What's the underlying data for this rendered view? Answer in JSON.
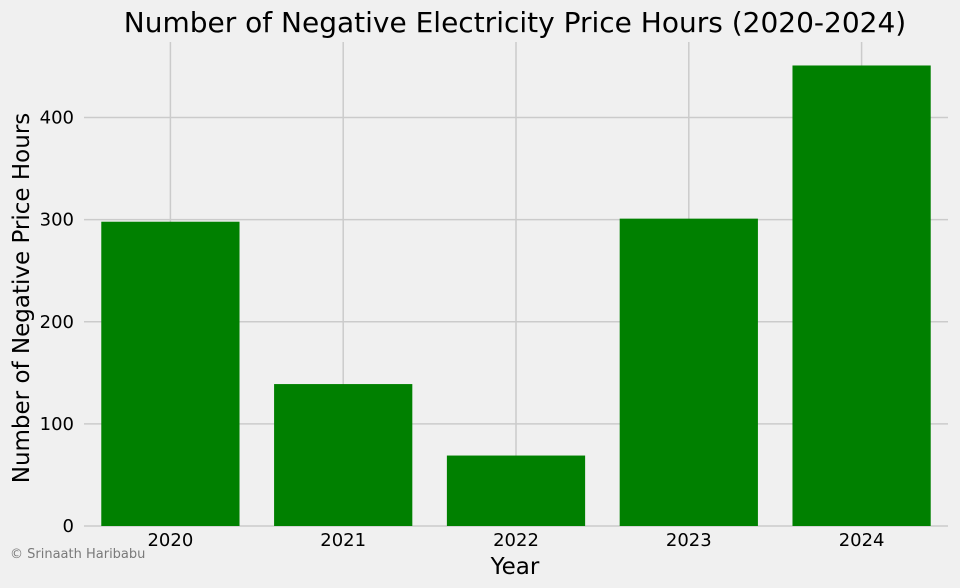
{
  "chart_data": {
    "type": "bar",
    "title": "Number of Negative Electricity Price Hours (2020-2024)",
    "xlabel": "Year",
    "ylabel": "Number of Negative Price Hours",
    "categories": [
      "2020",
      "2021",
      "2022",
      "2023",
      "2024"
    ],
    "values": [
      298,
      139,
      69,
      301,
      451
    ],
    "ylim": [
      0,
      474
    ],
    "yticks": [
      0,
      100,
      200,
      300,
      400
    ],
    "bar_color": "#008000",
    "grid": true
  },
  "credit": "© Srinaath Haribabu",
  "colors": {
    "background": "#f0f0f0",
    "grid": "#cbcbcb"
  }
}
